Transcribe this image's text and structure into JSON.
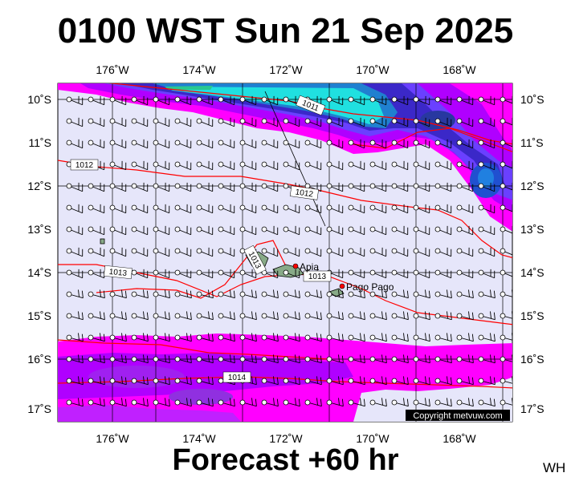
{
  "header": {
    "title": "0100 WST Sun 21 Sep 2025"
  },
  "footer": {
    "forecast": "Forecast +60 hr",
    "corner": "WH"
  },
  "map": {
    "lon_labels": [
      "176˚W",
      "174˚W",
      "172˚W",
      "170˚W",
      "168˚W"
    ],
    "lat_labels": [
      "10˚S",
      "11˚S",
      "12˚S",
      "13˚S",
      "14˚S",
      "15˚S",
      "16˚S",
      "17˚S"
    ],
    "isobars": [
      "1011",
      "1012",
      "1012",
      "1013",
      "1013",
      "1013",
      "1014"
    ],
    "places": [
      "Apia",
      "Pago Pago"
    ],
    "copyright": "Copyright metvuw.com",
    "colors": {
      "background": "#e6e6fa",
      "precip_light": "#ff00ff",
      "precip_mid": "#b000ff",
      "precip_heavy": "#5030e0",
      "precip_cyan": "#20e0e0",
      "isobar": "#ff0000",
      "land": "#88aa88"
    }
  }
}
